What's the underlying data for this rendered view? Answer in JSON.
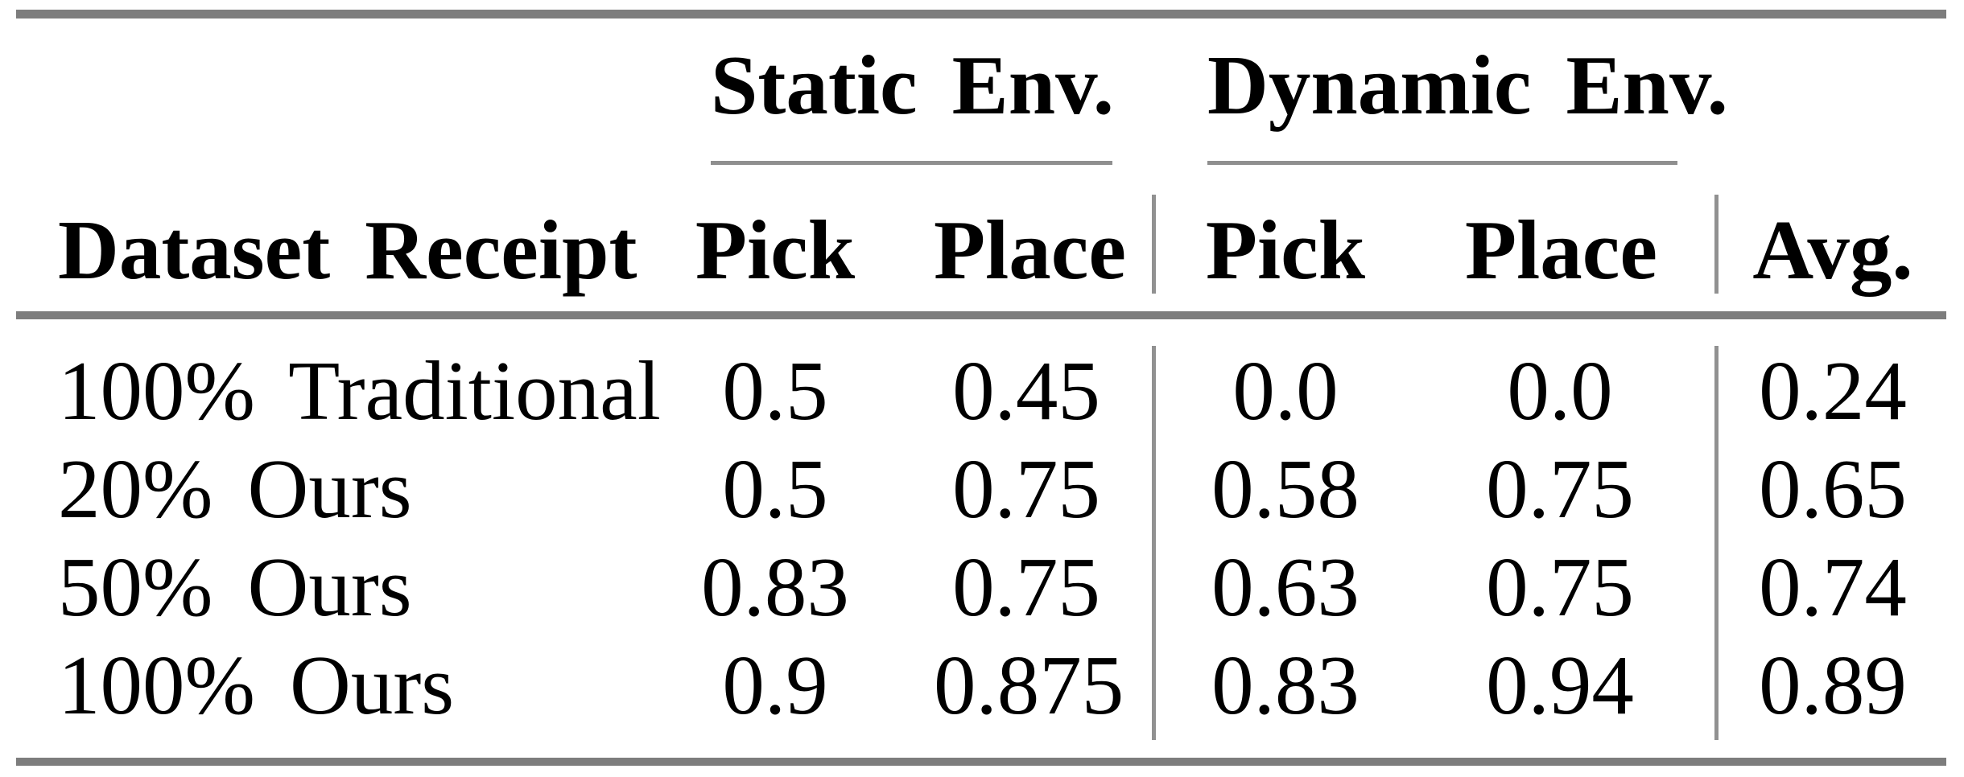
{
  "colors": {
    "background": "#ffffff",
    "text": "#000000",
    "rule_thick": "#7d7d7d",
    "rule_thin": "#8f8f8f"
  },
  "table": {
    "groups": [
      {
        "label": "Static Env."
      },
      {
        "label": "Dynamic Env."
      }
    ],
    "headers": {
      "row_label": "Dataset Receipt",
      "static_pick": "Pick",
      "static_place": "Place",
      "dynamic_pick": "Pick",
      "dynamic_place": "Place",
      "avg": "Avg."
    },
    "rows": [
      {
        "label": "100% Traditional",
        "static_pick": "0.5",
        "static_place": "0.45",
        "dynamic_pick": "0.0",
        "dynamic_place": "0.0",
        "avg": "0.24"
      },
      {
        "label": "20% Ours",
        "static_pick": "0.5",
        "static_place": "0.75",
        "dynamic_pick": "0.58",
        "dynamic_place": "0.75",
        "avg": "0.65"
      },
      {
        "label": "50% Ours",
        "static_pick": "0.83",
        "static_place": "0.75",
        "dynamic_pick": "0.63",
        "dynamic_place": "0.75",
        "avg": "0.74"
      },
      {
        "label": "100% Ours",
        "static_pick": "0.9",
        "static_place": "0.875",
        "dynamic_pick": "0.83",
        "dynamic_place": "0.94",
        "avg": "0.89"
      }
    ]
  },
  "chart_data": {
    "type": "table",
    "columns": [
      "Dataset Receipt",
      "Static Env. Pick",
      "Static Env. Place",
      "Dynamic Env. Pick",
      "Dynamic Env. Place",
      "Avg."
    ],
    "rows": [
      [
        "100% Traditional",
        0.5,
        0.45,
        0.0,
        0.0,
        0.24
      ],
      [
        "20% Ours",
        0.5,
        0.75,
        0.58,
        0.75,
        0.65
      ],
      [
        "50% Ours",
        0.83,
        0.75,
        0.63,
        0.75,
        0.74
      ],
      [
        "100% Ours",
        0.9,
        0.875,
        0.83,
        0.94,
        0.89
      ]
    ]
  }
}
